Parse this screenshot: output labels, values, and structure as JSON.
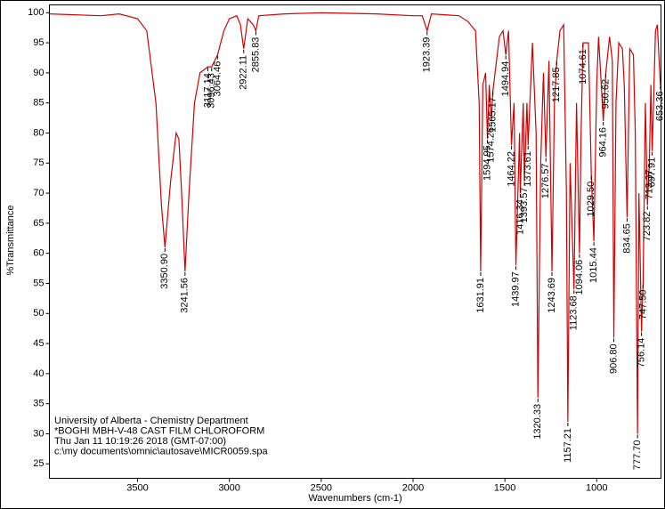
{
  "chart_data": {
    "type": "line",
    "xlabel": "Wavenumbers (cm-1)",
    "ylabel": "%Transmittance",
    "xlim": [
      3980,
      650
    ],
    "ylim": [
      22.6,
      101.3
    ],
    "xticks": [
      3500,
      3000,
      2500,
      2000,
      1500,
      1000
    ],
    "yticks": [
      25,
      30,
      35,
      40,
      45,
      50,
      55,
      60,
      65,
      70,
      75,
      80,
      85,
      90,
      95,
      100
    ],
    "x": [
      3980,
      3700,
      3600,
      3500,
      3450,
      3400,
      3370,
      3350.9,
      3320,
      3290,
      3275,
      3260,
      3241.56,
      3220,
      3190,
      3160,
      3117.14,
      3096.43,
      3064.46,
      3030,
      3000,
      2960,
      2940,
      2922.11,
      2900,
      2870,
      2855.83,
      2840,
      2700,
      2500,
      2200,
      2000,
      1950,
      1923.39,
      1900,
      1750,
      1700,
      1660,
      1640,
      1631.91,
      1620,
      1605,
      1594.95,
      1585,
      1574.26,
      1565.17,
      1530,
      1510,
      1494.94,
      1480,
      1464.22,
      1450,
      1439.97,
      1420,
      1416.34,
      1400,
      1393.57,
      1380,
      1373.61,
      1350,
      1330,
      1320.33,
      1305,
      1290,
      1276.57,
      1260,
      1243.69,
      1230,
      1217.85,
      1200,
      1180,
      1165,
      1157.21,
      1145,
      1123.68,
      1110,
      1094.06,
      1085,
      1074.61,
      1060,
      1045,
      1029.5,
      1015.44,
      1000,
      990,
      964.16,
      950.62,
      930,
      915,
      906.8,
      895,
      880,
      860,
      850,
      834.65,
      820,
      800,
      790,
      777.7,
      770,
      756.14,
      747.5,
      735,
      723.82,
      713.37,
      705,
      697.91,
      680,
      670,
      653.36,
      650
    ],
    "series": [
      {
        "color": "#d40000",
        "values": [
          99.8,
          99.5,
          99.8,
          99,
          97,
          85,
          68,
          61,
          72,
          80,
          79,
          70,
          57,
          70,
          85,
          90,
          91,
          91,
          93,
          97,
          99,
          99.5,
          98,
          94,
          99,
          98,
          97,
          99.5,
          99.8,
          100,
          99.8,
          99.5,
          99.5,
          97,
          99.8,
          99.5,
          98.5,
          97,
          85,
          57,
          88,
          90,
          79,
          88,
          82,
          87,
          96,
          97,
          93,
          97,
          78,
          85,
          58,
          80,
          70,
          85,
          72,
          85,
          78,
          95,
          80,
          36,
          75,
          90,
          76,
          92,
          57,
          85,
          92,
          97,
          98,
          70,
          32,
          75,
          54,
          85,
          60,
          80,
          95,
          95,
          95,
          73,
          62,
          88,
          96,
          82,
          90,
          96,
          92,
          46,
          85,
          95,
          94,
          88,
          66,
          94,
          93,
          80,
          30,
          70,
          47,
          55,
          85,
          68,
          75,
          88,
          77,
          97,
          98,
          88,
          88
        ]
      }
    ],
    "peaks": [
      {
        "value": 3350.9,
        "label": "3350.90"
      },
      {
        "value": 3241.56,
        "label": "3241.56"
      },
      {
        "value": 3117.14,
        "label": "3117.14"
      },
      {
        "value": 3096.43,
        "label": "3096.43"
      },
      {
        "value": 3064.46,
        "label": "3064.46"
      },
      {
        "value": 2922.11,
        "label": "2922.11"
      },
      {
        "value": 2855.83,
        "label": "2855.83"
      },
      {
        "value": 1923.39,
        "label": "1923.39"
      },
      {
        "value": 1631.91,
        "label": "1631.91"
      },
      {
        "value": 1594.95,
        "label": "1594.95"
      },
      {
        "value": 1574.26,
        "label": "1574.26"
      },
      {
        "value": 1565.17,
        "label": "1565.17"
      },
      {
        "value": 1494.94,
        "label": "1494.94"
      },
      {
        "value": 1464.22,
        "label": "1464.22"
      },
      {
        "value": 1439.97,
        "label": "1439.97"
      },
      {
        "value": 1416.34,
        "label": "1416.34"
      },
      {
        "value": 1393.57,
        "label": "1393.57"
      },
      {
        "value": 1373.61,
        "label": "1373.61"
      },
      {
        "value": 1320.33,
        "label": "1320.33"
      },
      {
        "value": 1276.57,
        "label": "1276.57"
      },
      {
        "value": 1243.69,
        "label": "1243.69"
      },
      {
        "value": 1217.85,
        "label": "1217.85"
      },
      {
        "value": 1157.21,
        "label": "1157.21"
      },
      {
        "value": 1123.68,
        "label": "1123.68"
      },
      {
        "value": 1094.06,
        "label": "1094.06"
      },
      {
        "value": 1074.61,
        "label": "1074.61"
      },
      {
        "value": 1029.5,
        "label": "1029.50"
      },
      {
        "value": 1015.44,
        "label": "1015.44"
      },
      {
        "value": 964.16,
        "label": "964.16"
      },
      {
        "value": 950.62,
        "label": "950.62"
      },
      {
        "value": 906.8,
        "label": "906.80"
      },
      {
        "value": 834.65,
        "label": "834.65"
      },
      {
        "value": 777.7,
        "label": "777.70"
      },
      {
        "value": 756.14,
        "label": "756.14"
      },
      {
        "value": 747.5,
        "label": "747.50"
      },
      {
        "value": 723.82,
        "label": "723.82"
      },
      {
        "value": 713.37,
        "label": "713.37"
      },
      {
        "value": 697.91,
        "label": "697.91"
      },
      {
        "value": 653.36,
        "label": "653.36"
      }
    ],
    "info": [
      "University of Alberta - Chemistry Department",
      "*BOGHI MBH-V-48 CAST FILM CHLOROFORM",
      "Thu Jan 11 10:19:26 2018 (GMT-07:00)",
      "c:\\my documents\\omnic\\autosave\\MICR0059.spa"
    ]
  }
}
